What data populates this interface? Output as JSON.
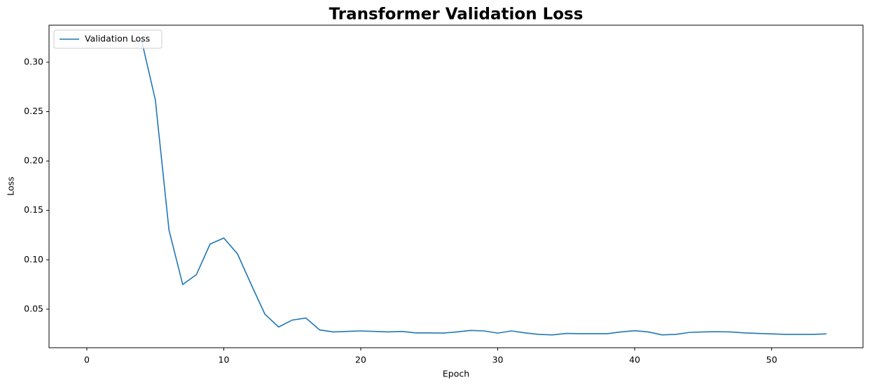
{
  "chart_data": {
    "type": "line",
    "title": "Transformer Validation Loss",
    "x_label": "Epoch",
    "y_label": "Loss",
    "x": [
      4,
      5,
      6,
      7,
      8,
      9,
      10,
      11,
      12,
      13,
      14,
      15,
      16,
      17,
      18,
      19,
      20,
      21,
      22,
      23,
      24,
      25,
      26,
      27,
      28,
      29,
      30,
      31,
      32,
      33,
      34,
      35,
      36,
      37,
      38,
      39,
      40,
      41,
      42,
      43,
      44,
      45,
      46,
      47,
      48,
      49,
      50,
      51,
      52,
      53,
      54
    ],
    "series": [
      {
        "name": "Validation Loss",
        "color": "#1f77b4",
        "values": [
          0.322,
          0.262,
          0.13,
          0.075,
          0.085,
          0.116,
          0.122,
          0.106,
          0.075,
          0.045,
          0.032,
          0.039,
          0.041,
          0.029,
          0.027,
          0.0275,
          0.028,
          0.0275,
          0.027,
          0.0275,
          0.026,
          0.026,
          0.0258,
          0.027,
          0.0285,
          0.028,
          0.0258,
          0.028,
          0.026,
          0.0245,
          0.024,
          0.0255,
          0.0252,
          0.0252,
          0.0252,
          0.027,
          0.0282,
          0.027,
          0.024,
          0.0245,
          0.0265,
          0.027,
          0.0272,
          0.027,
          0.026,
          0.0255,
          0.025,
          0.0245,
          0.0245,
          0.0245,
          0.025
        ]
      }
    ],
    "xlim": [
      -2.76,
      56.67
    ],
    "ylim": [
      0.011,
      0.3375
    ],
    "xticks": [
      0,
      10,
      20,
      30,
      40,
      50
    ],
    "yticks": [
      0.05,
      {
        "value": 0.1,
        "label": "0.10"
      },
      0.15,
      {
        "value": 0.2,
        "label": "0.20"
      },
      0.25,
      {
        "value": 0.3,
        "label": "0.30"
      }
    ],
    "grid": false,
    "legend": "upper left"
  }
}
